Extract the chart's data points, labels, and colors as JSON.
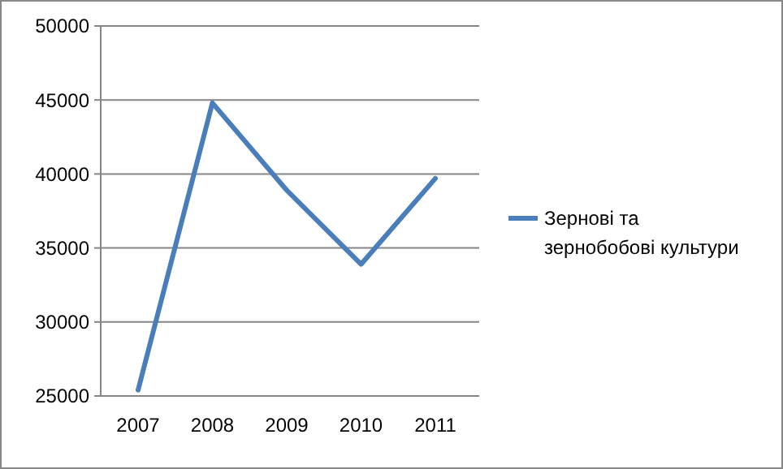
{
  "chart_data": {
    "type": "line",
    "categories": [
      "2007",
      "2008",
      "2009",
      "2010",
      "2011"
    ],
    "series": [
      {
        "name": "Зернові та зернобобові культури",
        "color": "#4a7ebb",
        "values": [
          25400,
          44800,
          38900,
          33900,
          39700
        ]
      }
    ],
    "ylim": [
      25000,
      50000
    ],
    "yticks": [
      25000,
      30000,
      35000,
      40000,
      45000,
      50000
    ],
    "grid": "y",
    "legend": "right",
    "marker": "none",
    "line_style": "solid"
  }
}
